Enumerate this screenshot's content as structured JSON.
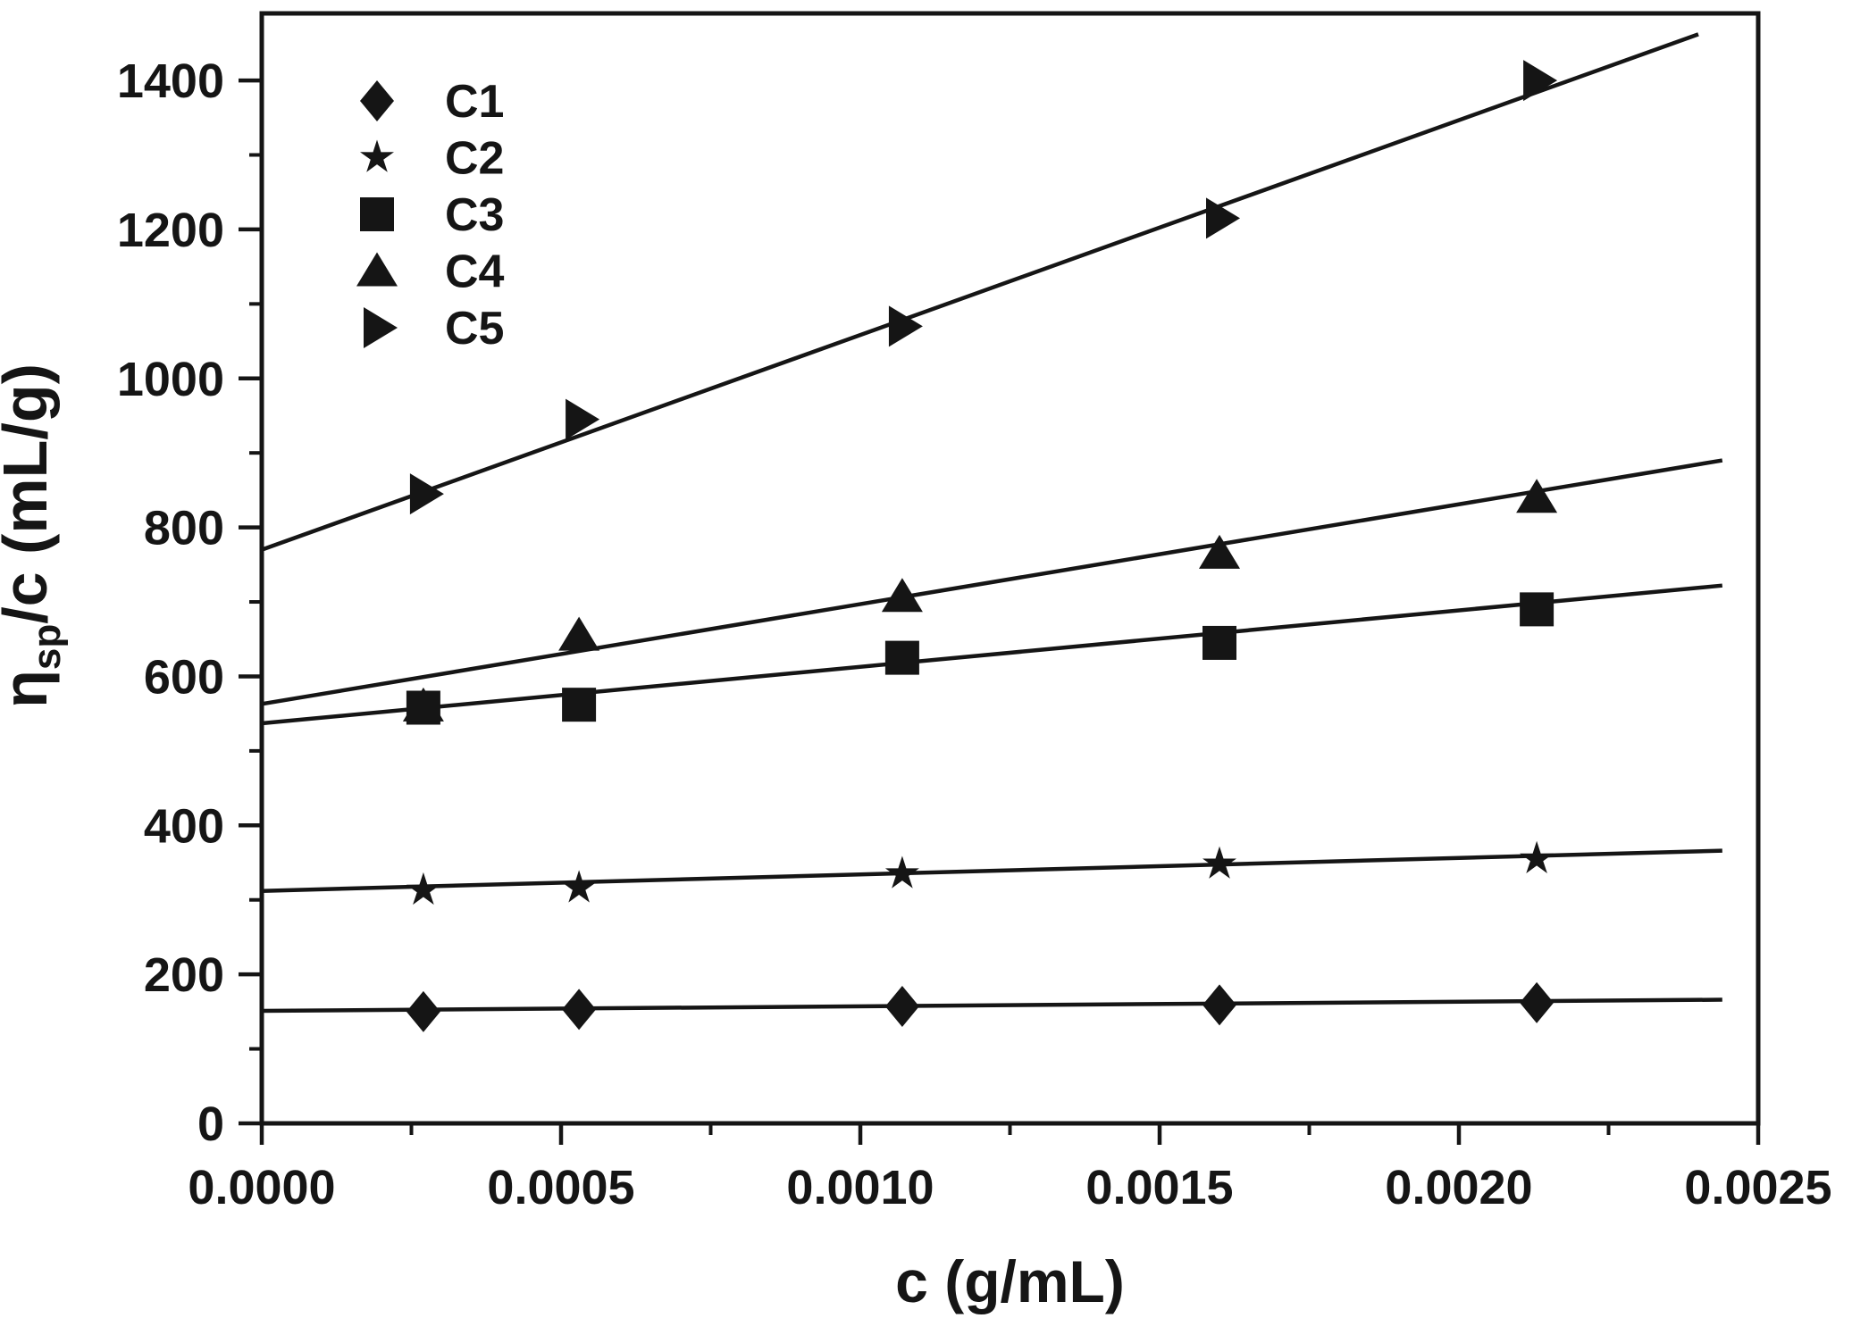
{
  "chart_data": {
    "type": "scatter",
    "title": "",
    "xlabel": "c (g/mL)",
    "ylabel": "ηsp/c (mL/g)",
    "ylabel_parts": {
      "base": "η",
      "sub": "sp",
      "rest": "/c (mL/g)"
    },
    "xlim": [
      0,
      0.0025
    ],
    "ylim": [
      0,
      1490
    ],
    "x_ticks": [
      0.0,
      0.0005,
      0.001,
      0.0015,
      0.002,
      0.0025
    ],
    "x_tick_labels": [
      "0.0000",
      "0.0005",
      "0.0010",
      "0.0015",
      "0.0020",
      "0.0025"
    ],
    "x_minor_ticks": [
      0.00025,
      0.00075,
      0.00125,
      0.00175,
      0.00225
    ],
    "y_ticks": [
      0,
      200,
      400,
      600,
      800,
      1000,
      1200,
      1400
    ],
    "y_tick_labels": [
      "0",
      "200",
      "400",
      "600",
      "800",
      "1000",
      "1200",
      "1400"
    ],
    "y_minor_ticks": [
      100,
      300,
      500,
      700,
      900,
      1100,
      1300
    ],
    "grid": false,
    "legend_position": "top-left",
    "x": [
      0.00027,
      0.00053,
      0.00107,
      0.0016,
      0.00213
    ],
    "series": [
      {
        "name": "C1",
        "marker": "diamond",
        "values": [
          150,
          153,
          157,
          159,
          162
        ],
        "line": {
          "x1": 0,
          "v1": 151,
          "x2": 0.00244,
          "v2": 166
        }
      },
      {
        "name": "C2",
        "marker": "star",
        "values": [
          313,
          316,
          335,
          348,
          355
        ],
        "line": {
          "x1": 0,
          "v1": 312,
          "x2": 0.00244,
          "v2": 366
        }
      },
      {
        "name": "C3",
        "marker": "square",
        "values": [
          558,
          562,
          625,
          645,
          690
        ],
        "line": {
          "x1": 0,
          "v1": 537,
          "x2": 0.00244,
          "v2": 722
        }
      },
      {
        "name": "C4",
        "marker": "triangle-up",
        "values": [
          560,
          655,
          707,
          765,
          840
        ],
        "line": {
          "x1": 0,
          "v1": 563,
          "x2": 0.00244,
          "v2": 890
        }
      },
      {
        "name": "C5",
        "marker": "triangle-right",
        "values": [
          845,
          945,
          1070,
          1215,
          1400
        ],
        "line": {
          "x1": 0,
          "v1": 770,
          "x2": 0.0024,
          "v2": 1462
        }
      }
    ],
    "colors": {
      "foreground": "#151515",
      "background": "#ffffff"
    }
  }
}
